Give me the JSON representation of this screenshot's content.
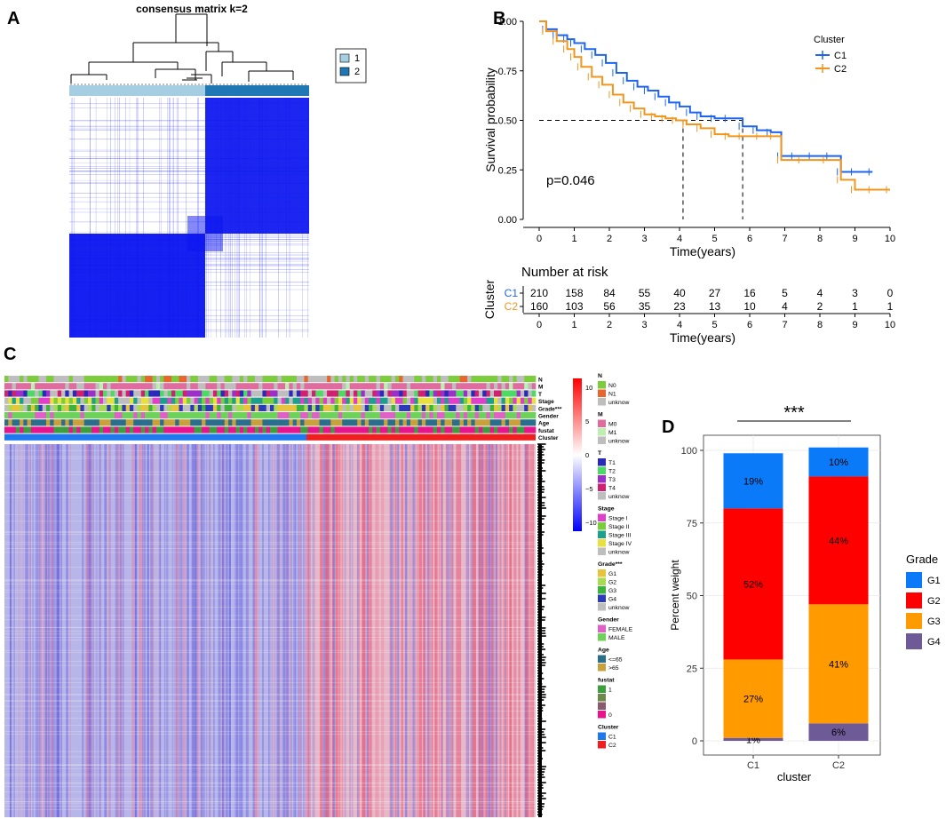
{
  "panels": {
    "A": {
      "letter": "A",
      "title": "consensus matrix k=2",
      "legend": [
        {
          "label": "1",
          "color": "#A6CEE3"
        },
        {
          "label": "2",
          "color": "#1F78B4"
        }
      ],
      "matrix_color": "#0A14F0"
    },
    "B": {
      "letter": "B",
      "legend_title": "Cluster",
      "pvalue": "p=0.046",
      "risk_title": "Number at risk",
      "risk_ylabel": "Cluster"
    },
    "C": {
      "letter": "C",
      "annotation_rows": [
        "N",
        "M",
        "T",
        "Stage",
        "Grade***",
        "Gender",
        "Age",
        "fustat",
        "Cluster"
      ],
      "colorbar_ticks": [
        "10",
        "5",
        "0",
        "−5",
        "−10"
      ],
      "legend_groups": [
        {
          "title": "N",
          "items": [
            {
              "label": "N0",
              "color": "#7CCD3C"
            },
            {
              "label": "N1",
              "color": "#E8662E"
            },
            {
              "label": "unknow",
              "color": "#BEBEBE"
            }
          ]
        },
        {
          "title": "M",
          "items": [
            {
              "label": "M0",
              "color": "#E06C9F"
            },
            {
              "label": "M1",
              "color": "#BFEFB0"
            },
            {
              "label": "unknow",
              "color": "#BEBEBE"
            }
          ]
        },
        {
          "title": "T",
          "items": [
            {
              "label": "T1",
              "color": "#2A2AB8"
            },
            {
              "label": "T2",
              "color": "#4CD964"
            },
            {
              "label": "T3",
              "color": "#9B30C8"
            },
            {
              "label": "T4",
              "color": "#D02070"
            },
            {
              "label": "unknow",
              "color": "#BEBEBE"
            }
          ]
        },
        {
          "title": "Stage",
          "items": [
            {
              "label": "Stage I",
              "color": "#E040C8"
            },
            {
              "label": "Stage II",
              "color": "#7CCD3C"
            },
            {
              "label": "Stage III",
              "color": "#1E9E8C"
            },
            {
              "label": "Stage IV",
              "color": "#E8E03C"
            },
            {
              "label": "unknow",
              "color": "#BEBEBE"
            }
          ]
        },
        {
          "title": "Grade***",
          "items": [
            {
              "label": "G1",
              "color": "#E8C43C"
            },
            {
              "label": "G2",
              "color": "#A8DC50"
            },
            {
              "label": "G3",
              "color": "#3CB43C"
            },
            {
              "label": "G4",
              "color": "#2A3AB8"
            },
            {
              "label": "unknow",
              "color": "#BEBEBE"
            }
          ]
        },
        {
          "title": "Gender",
          "items": [
            {
              "label": "FEMALE",
              "color": "#E060C8"
            },
            {
              "label": "MALE",
              "color": "#6CD25A"
            }
          ]
        },
        {
          "title": "Age",
          "items": [
            {
              "label": "<=65",
              "color": "#2A6E8C"
            },
            {
              "label": ">65",
              "color": "#C8A03C"
            }
          ]
        },
        {
          "title": "fustat",
          "items": [
            {
              "label": "1",
              "color": "#3C9E3C"
            },
            {
              "label": "",
              "color": "#6E8A4A"
            },
            {
              "label": "",
              "color": "#8A5A6E"
            },
            {
              "label": "0",
              "color": "#E8148C"
            }
          ]
        },
        {
          "title": "Cluster",
          "items": [
            {
              "label": "C1",
              "color": "#1E78F0"
            },
            {
              "label": "C2",
              "color": "#F01E1E"
            }
          ]
        }
      ]
    },
    "D": {
      "letter": "D",
      "significance": "***",
      "legend_title": "Grade"
    }
  },
  "chart_data": [
    {
      "type": "line",
      "title": "",
      "xlabel": "Time(years)",
      "ylabel": "Survival probability",
      "xlim": [
        0,
        10
      ],
      "ylim": [
        0,
        1
      ],
      "x_ticks": [
        0,
        1,
        2,
        3,
        4,
        5,
        6,
        7,
        8,
        9,
        10
      ],
      "y_ticks": [
        "0.00",
        "0.25",
        "0.50",
        "0.75",
        "1.00"
      ],
      "median_line": {
        "y": 0.5,
        "medians": [
          4.1,
          5.8
        ]
      },
      "series": [
        {
          "name": "C1",
          "color": "#1E64F0",
          "x": [
            0,
            0.2,
            0.5,
            0.8,
            1.0,
            1.3,
            1.6,
            1.9,
            2.2,
            2.5,
            2.8,
            3.1,
            3.4,
            3.7,
            4.0,
            4.3,
            4.6,
            5.0,
            5.4,
            5.8,
            6.2,
            6.6,
            6.9,
            7.3,
            7.8,
            8.3,
            8.6,
            9.0,
            9.5
          ],
          "y": [
            1.0,
            0.96,
            0.93,
            0.91,
            0.89,
            0.86,
            0.83,
            0.79,
            0.74,
            0.7,
            0.67,
            0.65,
            0.62,
            0.59,
            0.57,
            0.54,
            0.52,
            0.51,
            0.51,
            0.47,
            0.45,
            0.44,
            0.32,
            0.32,
            0.32,
            0.32,
            0.24,
            0.24,
            0.24
          ]
        },
        {
          "name": "C2",
          "color": "#F0961E",
          "x": [
            0,
            0.2,
            0.5,
            0.8,
            1.0,
            1.2,
            1.5,
            1.8,
            2.1,
            2.4,
            2.7,
            3.0,
            3.3,
            3.6,
            3.9,
            4.2,
            4.6,
            5.0,
            5.4,
            5.8,
            6.3,
            6.7,
            6.9,
            7.5,
            8.2,
            8.6,
            9.0,
            9.5,
            10.0
          ],
          "y": [
            1.0,
            0.95,
            0.9,
            0.86,
            0.82,
            0.77,
            0.72,
            0.68,
            0.63,
            0.59,
            0.56,
            0.53,
            0.52,
            0.51,
            0.5,
            0.48,
            0.46,
            0.43,
            0.42,
            0.42,
            0.42,
            0.42,
            0.3,
            0.3,
            0.3,
            0.2,
            0.15,
            0.15,
            0.15
          ]
        }
      ]
    },
    {
      "type": "table",
      "title": "Number at risk",
      "xlabel": "Time(years)",
      "x": [
        0,
        1,
        2,
        3,
        4,
        5,
        6,
        7,
        8,
        9,
        10
      ],
      "rows": [
        {
          "name": "C1",
          "color": "#1E64F0",
          "values": [
            210,
            158,
            84,
            55,
            40,
            27,
            16,
            5,
            4,
            3,
            0
          ]
        },
        {
          "name": "C2",
          "color": "#F0961E",
          "values": [
            160,
            103,
            56,
            35,
            23,
            13,
            10,
            4,
            2,
            1,
            1
          ]
        }
      ]
    },
    {
      "type": "bar",
      "stacked": true,
      "title": "",
      "xlabel": "cluster",
      "ylabel": "Percent weight",
      "categories": [
        "C1",
        "C2"
      ],
      "ylim": [
        0,
        100
      ],
      "y_ticks": [
        0,
        25,
        50,
        75,
        100
      ],
      "series": [
        {
          "name": "G4",
          "color": "#6E5A96",
          "values": [
            1,
            6
          ],
          "labels": [
            "1%",
            "6%"
          ]
        },
        {
          "name": "G3",
          "color": "#FF9A00",
          "values": [
            27,
            41
          ],
          "labels": [
            "27%",
            "41%"
          ]
        },
        {
          "name": "G2",
          "color": "#FF0000",
          "values": [
            52,
            44
          ],
          "labels": [
            "52%",
            "44%"
          ]
        },
        {
          "name": "G1",
          "color": "#0A7AF8",
          "values": [
            19,
            10
          ],
          "labels": [
            "19%",
            "10%"
          ]
        }
      ],
      "legend_order": [
        "G1",
        "G2",
        "G3",
        "G4"
      ]
    }
  ]
}
